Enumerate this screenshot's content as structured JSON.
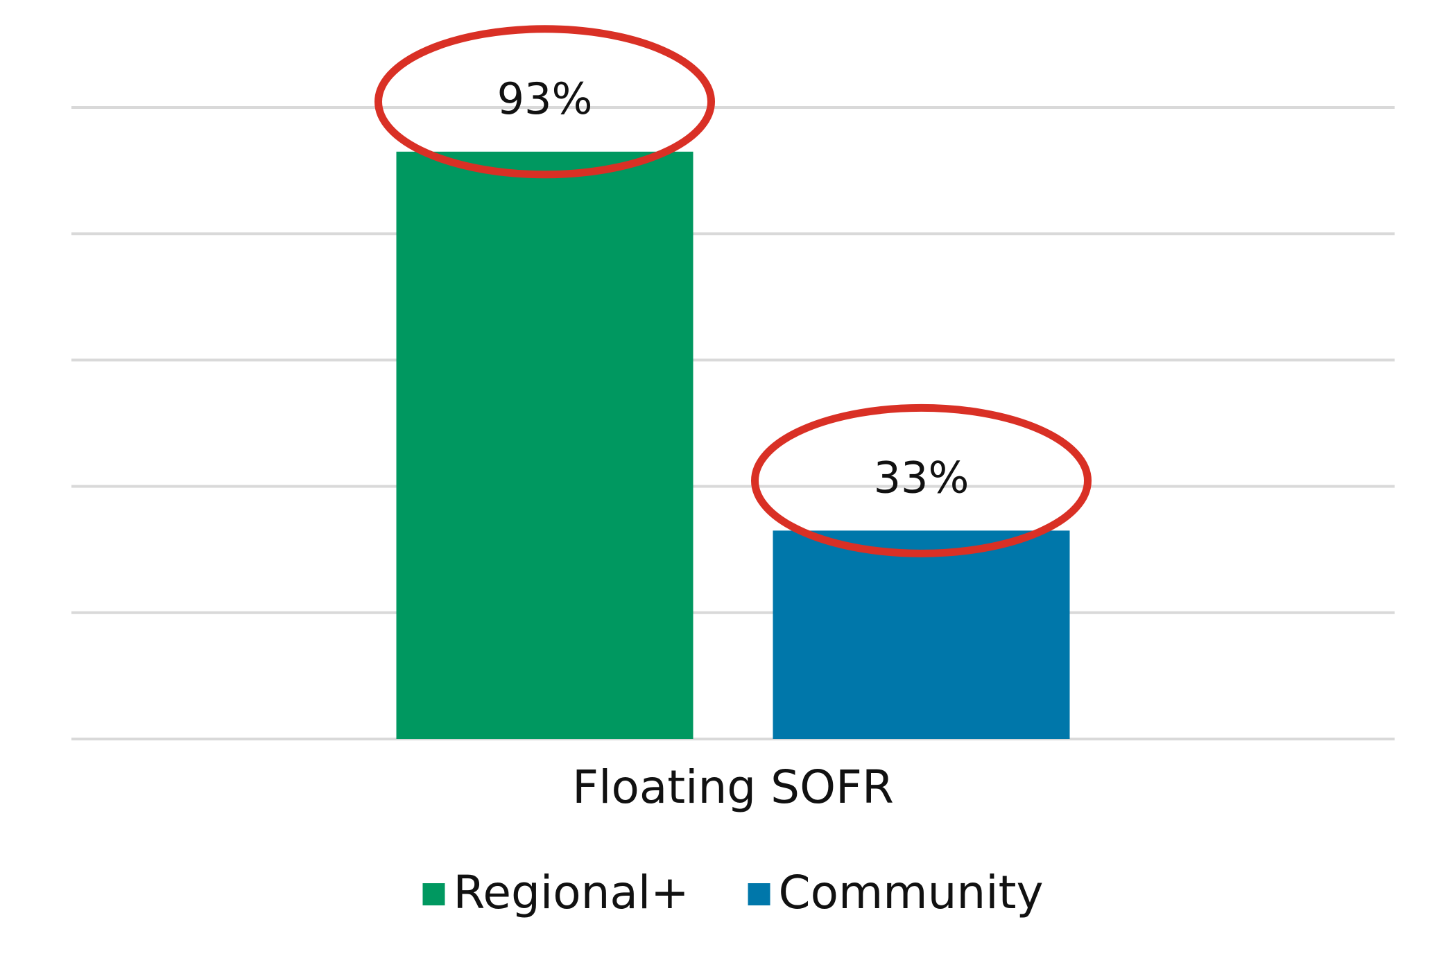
{
  "chart_data": {
    "type": "bar",
    "categories": [
      "Floating SOFR"
    ],
    "series": [
      {
        "name": "Regional+",
        "color": "#009860",
        "values": [
          93
        ],
        "value_labels": [
          "93%"
        ]
      },
      {
        "name": "Community",
        "color": "#0077aa",
        "values": [
          33
        ],
        "value_labels": [
          "33%"
        ]
      }
    ],
    "ylim": [
      0,
      100
    ],
    "yticks": [
      0,
      20,
      40,
      60,
      80,
      100
    ],
    "grid": true,
    "legend": "bottom"
  }
}
